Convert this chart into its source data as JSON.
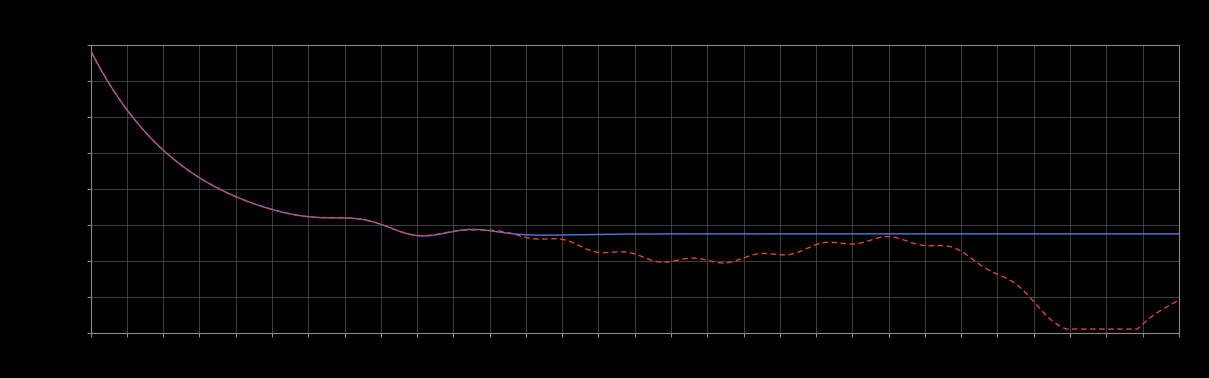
{
  "background_color": "#000000",
  "plot_bg_color": "#000000",
  "grid_color": "#4a4a4a",
  "line1_color": "#5577dd",
  "line2_color": "#dd4433",
  "line_width": 1.0,
  "figsize": [
    12.09,
    3.78
  ],
  "dpi": 100,
  "xlim": [
    0,
    30
  ],
  "ylim": [
    0,
    8
  ],
  "xtick_count": 31,
  "ytick_count": 9,
  "spine_color": "#888888",
  "outer_bg": "#000000",
  "margin_color": "#000000"
}
